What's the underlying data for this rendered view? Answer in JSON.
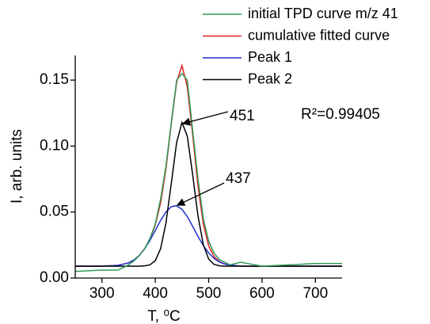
{
  "chart_data": {
    "type": "line",
    "x_label": "T, ⁰C",
    "y_label": "I, arb. units",
    "annotations": [
      "451",
      "437",
      "R²=0.99405"
    ],
    "x": [
      250,
      300,
      330,
      350,
      360,
      370,
      380,
      390,
      400,
      410,
      420,
      430,
      440,
      450,
      460,
      470,
      480,
      490,
      500,
      510,
      520,
      530,
      540,
      560,
      600,
      650,
      700,
      750
    ],
    "series": [
      {
        "name": "initial TPD curve m/z 41",
        "color": "#2f9a57",
        "values": [
          0.005,
          0.006,
          0.006,
          0.01,
          0.013,
          0.017,
          0.022,
          0.03,
          0.041,
          0.06,
          0.085,
          0.118,
          0.15,
          0.155,
          0.15,
          0.112,
          0.075,
          0.045,
          0.028,
          0.019,
          0.014,
          0.012,
          0.01,
          0.012,
          0.009,
          0.01,
          0.011,
          0.011
        ]
      },
      {
        "name": "cumulative fitted curve",
        "color": "#e02020",
        "values": [
          0.009,
          0.009,
          0.0096,
          0.0115,
          0.0137,
          0.0171,
          0.0223,
          0.0296,
          0.0403,
          0.057,
          0.0829,
          0.1169,
          0.1485,
          0.161,
          0.145,
          0.1086,
          0.0696,
          0.0409,
          0.0244,
          0.0163,
          0.0125,
          0.0106,
          0.0098,
          0.0091,
          0.009,
          0.009,
          0.009,
          0.009
        ]
      },
      {
        "name": "Peak 1",
        "color": "#1f2fd0",
        "values": [
          0.009,
          0.009,
          0.0096,
          0.0115,
          0.0137,
          0.0171,
          0.0221,
          0.0286,
          0.0361,
          0.0437,
          0.0501,
          0.0541,
          0.0548,
          0.0521,
          0.0465,
          0.0392,
          0.0315,
          0.0246,
          0.019,
          0.0149,
          0.0122,
          0.0106,
          0.0098,
          0.0091,
          0.009,
          0.009,
          0.009,
          0.009
        ]
      },
      {
        "name": "Peak 2",
        "color": "#000000",
        "values": [
          0.009,
          0.009,
          0.009,
          0.009,
          0.009,
          0.009,
          0.0092,
          0.01,
          0.0132,
          0.0223,
          0.0418,
          0.0718,
          0.1027,
          0.1179,
          0.1075,
          0.0784,
          0.0471,
          0.0253,
          0.0144,
          0.0104,
          0.0093,
          0.009,
          0.009,
          0.009,
          0.009,
          0.009,
          0.009,
          0.009
        ]
      }
    ],
    "xlim": [
      250,
      750
    ],
    "ylim": [
      0,
      0.17
    ],
    "xticks": [
      300,
      400,
      500,
      600,
      700
    ],
    "yticks": [
      {
        "value": 0,
        "label": "0.00"
      },
      0.05,
      {
        "value": 0.1,
        "label": "0.10"
      },
      0.15
    ],
    "legend": "upper right",
    "grid": false
  }
}
